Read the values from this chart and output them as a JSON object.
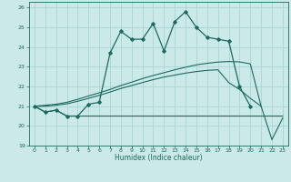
{
  "xlabel": "Humidex (Indice chaleur)",
  "xlim": [
    -0.5,
    23.5
  ],
  "ylim": [
    19,
    26.3
  ],
  "yticks": [
    19,
    20,
    21,
    22,
    23,
    24,
    25,
    26
  ],
  "xticks": [
    0,
    1,
    2,
    3,
    4,
    5,
    6,
    7,
    8,
    9,
    10,
    11,
    12,
    13,
    14,
    15,
    16,
    17,
    18,
    19,
    20,
    21,
    22,
    23
  ],
  "bg_color": "#cce9e9",
  "grid_color": "#aad4d4",
  "line_color": "#1a6b5e",
  "line1_x": [
    0,
    1,
    2,
    3,
    4,
    5,
    6,
    7,
    8,
    9,
    10,
    11,
    12,
    13,
    14,
    15,
    16,
    17,
    18,
    19,
    20
  ],
  "line1_y": [
    21.0,
    20.7,
    20.8,
    20.5,
    20.5,
    21.1,
    21.2,
    23.7,
    24.8,
    24.4,
    24.4,
    25.2,
    23.8,
    25.3,
    25.8,
    25.0,
    24.5,
    24.4,
    24.3,
    22.0,
    21.0
  ],
  "line2_x": [
    0,
    1,
    2,
    3,
    4,
    5,
    6,
    7,
    8,
    9,
    10,
    11,
    12,
    13,
    14,
    15,
    16,
    17,
    18,
    19,
    20,
    21,
    22,
    23
  ],
  "line2_y": [
    21.0,
    20.7,
    20.8,
    20.5,
    20.5,
    20.5,
    20.5,
    20.5,
    20.5,
    20.5,
    20.5,
    20.5,
    20.5,
    20.5,
    20.5,
    20.5,
    20.5,
    20.5,
    20.5,
    20.5,
    20.5,
    20.5,
    20.5,
    20.5
  ],
  "line3_x": [
    0,
    1,
    2,
    3,
    4,
    5,
    6,
    7,
    8,
    9,
    10,
    11,
    12,
    13,
    14,
    15,
    16,
    17,
    18,
    19,
    20,
    21
  ],
  "line3_y": [
    21.0,
    21.05,
    21.1,
    21.2,
    21.35,
    21.52,
    21.68,
    21.85,
    22.05,
    22.22,
    22.4,
    22.56,
    22.7,
    22.85,
    22.98,
    23.1,
    23.18,
    23.24,
    23.27,
    23.25,
    23.15,
    21.0
  ],
  "line4_x": [
    0,
    1,
    2,
    3,
    4,
    5,
    6,
    7,
    8,
    9,
    10,
    11,
    12,
    13,
    14,
    15,
    16,
    17,
    18,
    19,
    20,
    21,
    22,
    23
  ],
  "line4_y": [
    21.0,
    21.0,
    21.05,
    21.12,
    21.25,
    21.4,
    21.55,
    21.72,
    21.9,
    22.05,
    22.2,
    22.35,
    22.48,
    22.58,
    22.68,
    22.76,
    22.82,
    22.85,
    22.2,
    21.85,
    21.4,
    21.0,
    19.3,
    20.4
  ]
}
